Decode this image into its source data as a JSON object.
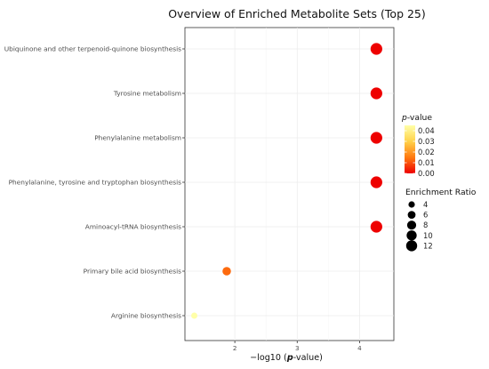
{
  "chart_data": {
    "type": "scatter",
    "title": "Overview of Enriched Metabolite Sets (Top 25)",
    "xlabel_prefix": "−log10 (",
    "xlabel_emph": "p",
    "xlabel_suffix": "-value)",
    "xlim": [
      1.2,
      4.55
    ],
    "x_ticks": [
      {
        "value": 2,
        "label": "2"
      },
      {
        "value": 3,
        "label": "3"
      },
      {
        "value": 4,
        "label": "4"
      }
    ],
    "categories": [
      "Ubiquinone and other terpenoid-quinone biosynthesis",
      "Tyrosine metabolism",
      "Phenylalanine metabolism",
      "Phenylalanine, tyrosine and tryptophan biosynthesis",
      "Aminoacyl-tRNA biosynthesis",
      "Primary bile acid biosynthesis",
      "Arginine biosynthesis"
    ],
    "points": [
      {
        "category": "Ubiquinone and other terpenoid-quinone biosynthesis",
        "x": 4.27,
        "p_value": 0.0001,
        "enrichment_ratio": 11.5
      },
      {
        "category": "Tyrosine metabolism",
        "x": 4.27,
        "p_value": 0.0001,
        "enrichment_ratio": 11.5
      },
      {
        "category": "Phenylalanine metabolism",
        "x": 4.27,
        "p_value": 0.0001,
        "enrichment_ratio": 11.5
      },
      {
        "category": "Phenylalanine, tyrosine and tryptophan biosynthesis",
        "x": 4.27,
        "p_value": 0.0001,
        "enrichment_ratio": 11.5
      },
      {
        "category": "Aminoacyl-tRNA biosynthesis",
        "x": 4.27,
        "p_value": 0.0001,
        "enrichment_ratio": 11.5
      },
      {
        "category": "Primary bile acid biosynthesis",
        "x": 1.87,
        "p_value": 0.013,
        "enrichment_ratio": 6
      },
      {
        "category": "Arginine biosynthesis",
        "x": 1.35,
        "p_value": 0.045,
        "enrichment_ratio": 3.2
      }
    ],
    "color_legend": {
      "title_emph": "p",
      "title_rest": "-value",
      "domain": [
        0,
        0.045
      ],
      "ticks": [
        {
          "value": 0.04,
          "label": "0.04"
        },
        {
          "value": 0.03,
          "label": "0.03"
        },
        {
          "value": 0.02,
          "label": "0.02"
        },
        {
          "value": 0.01,
          "label": "0.01"
        },
        {
          "value": 0.0,
          "label": "0.00"
        }
      ],
      "colors": [
        "#ee0000",
        "#ff7a10",
        "#ffd24a",
        "#ffffa8"
      ]
    },
    "size_legend": {
      "title": "Enrichment Ratio",
      "items": [
        {
          "value": 4,
          "label": "4"
        },
        {
          "value": 6,
          "label": "6"
        },
        {
          "value": 8,
          "label": "8"
        },
        {
          "value": 10,
          "label": "10"
        },
        {
          "value": 12,
          "label": "12"
        }
      ]
    },
    "grid": true,
    "legend_position": "right"
  }
}
